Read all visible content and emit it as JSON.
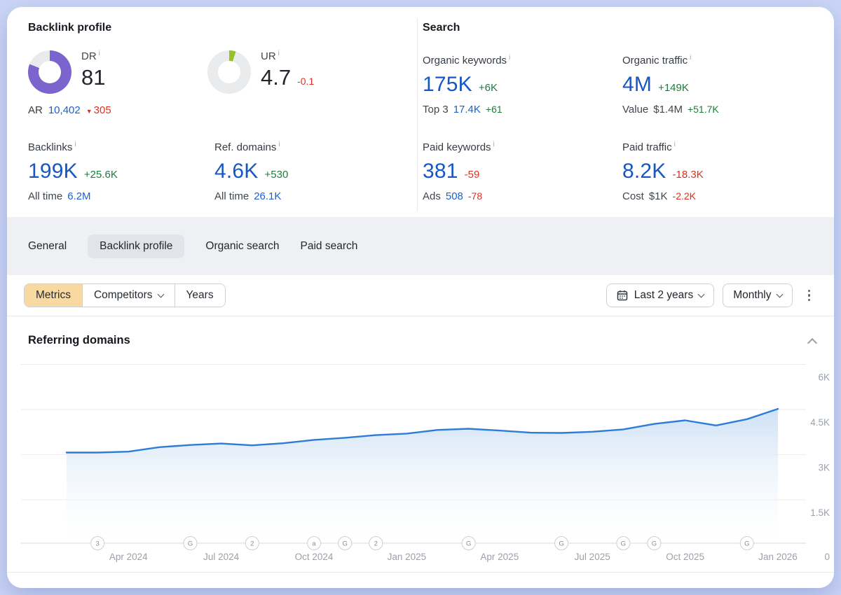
{
  "backlink_profile": {
    "title": "Backlink profile",
    "dr": {
      "label": "DR",
      "value": "81",
      "donut_percent": 81,
      "donut_color": "#7d63ce",
      "ar_label": "AR",
      "ar_value": "10,402",
      "ar_delta": "305"
    },
    "ur": {
      "label": "UR",
      "value": "4.7",
      "delta": "-0.1",
      "donut_percent": 5,
      "donut_color": "#95c229"
    },
    "backlinks": {
      "label": "Backlinks",
      "value": "199K",
      "delta": "+25.6K",
      "sub_label": "All time",
      "sub_value": "6.2M"
    },
    "ref_domains": {
      "label": "Ref. domains",
      "value": "4.6K",
      "delta": "+530",
      "sub_label": "All time",
      "sub_value": "26.1K"
    }
  },
  "search": {
    "title": "Search",
    "organic_keywords": {
      "label": "Organic keywords",
      "value": "175K",
      "delta": "+6K",
      "sub_label": "Top 3",
      "sub_value": "17.4K",
      "sub_delta": "+61"
    },
    "organic_traffic": {
      "label": "Organic traffic",
      "value": "4M",
      "delta": "+149K",
      "sub_label": "Value",
      "sub_value": "$1.4M",
      "sub_delta": "+51.7K"
    },
    "paid_keywords": {
      "label": "Paid keywords",
      "value": "381",
      "delta": "-59",
      "sub_label": "Ads",
      "sub_value": "508",
      "sub_delta": "-78"
    },
    "paid_traffic": {
      "label": "Paid traffic",
      "value": "8.2K",
      "delta": "-18.3K",
      "sub_label": "Cost",
      "sub_value": "$1K",
      "sub_delta": "-2.2K"
    }
  },
  "tabs": {
    "items": [
      {
        "label": "General"
      },
      {
        "label": "Backlink profile"
      },
      {
        "label": "Organic search"
      },
      {
        "label": "Paid search"
      }
    ],
    "active_index": 1
  },
  "toolbar": {
    "metrics_label": "Metrics",
    "competitors_label": "Competitors",
    "years_label": "Years",
    "range_label": "Last 2 years",
    "granularity_label": "Monthly",
    "calendar_icon": "calendar-icon",
    "more_icon": "kebab-menu-icon"
  },
  "chart": {
    "title": "Referring domains"
  },
  "chart_data": {
    "type": "area",
    "title": "Referring domains",
    "x": [
      "Feb 2024",
      "Mar 2024",
      "Apr 2024",
      "May 2024",
      "Jun 2024",
      "Jul 2024",
      "Aug 2024",
      "Sep 2024",
      "Oct 2024",
      "Nov 2024",
      "Dec 2024",
      "Jan 2025",
      "Feb 2025",
      "Mar 2025",
      "Apr 2025",
      "May 2025",
      "Jun 2025",
      "Jul 2025",
      "Aug 2025",
      "Sep 2025",
      "Oct 2025",
      "Nov 2025",
      "Dec 2025",
      "Jan 2026"
    ],
    "values": [
      3070,
      3070,
      3100,
      3250,
      3320,
      3370,
      3310,
      3380,
      3490,
      3560,
      3650,
      3700,
      3820,
      3860,
      3800,
      3730,
      3720,
      3760,
      3840,
      4020,
      4140,
      3970,
      4180,
      4520
    ],
    "ylim": [
      0,
      6000
    ],
    "yticks": [
      {
        "v": 6000,
        "label": "6K"
      },
      {
        "v": 4500,
        "label": "4.5K"
      },
      {
        "v": 3000,
        "label": "3K"
      },
      {
        "v": 1500,
        "label": "1.5K"
      },
      {
        "v": 0,
        "label": "0"
      }
    ],
    "xtick_indices": [
      2,
      5,
      8,
      11,
      14,
      17,
      20,
      23
    ],
    "events": [
      {
        "i": 1,
        "glyph": "3"
      },
      {
        "i": 4,
        "glyph": "G"
      },
      {
        "i": 6,
        "glyph": "2"
      },
      {
        "i": 8,
        "glyph": "a"
      },
      {
        "i": 9,
        "glyph": "G"
      },
      {
        "i": 10,
        "glyph": "2"
      },
      {
        "i": 13,
        "glyph": "G"
      },
      {
        "i": 16,
        "glyph": "G"
      },
      {
        "i": 18,
        "glyph": "G"
      },
      {
        "i": 19,
        "glyph": "G"
      },
      {
        "i": 22,
        "glyph": "G"
      }
    ],
    "line_color": "#2e7cd6",
    "area_top_color": "#cbdff4",
    "grid_color": "#ecedef",
    "axis_color": "#d7dadd",
    "tick_color": "#9ba1a9",
    "legend": "none",
    "grid": true
  }
}
